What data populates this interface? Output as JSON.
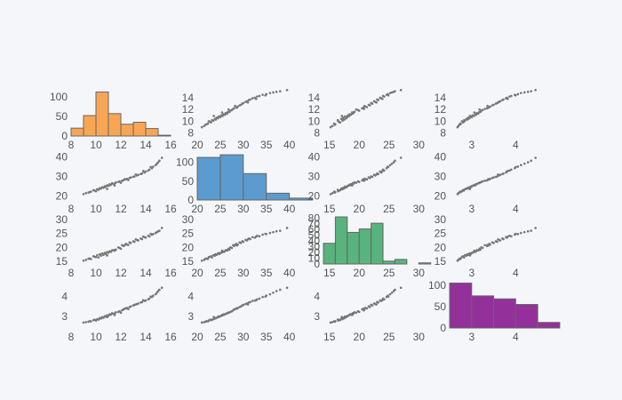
{
  "figure": {
    "background": "#f5f6fa",
    "point_color": "#777777",
    "hist_colors": [
      "#f8a654",
      "#5b9bcf",
      "#58b47c",
      "#93309a"
    ]
  },
  "chart_data": {
    "type": "scatter-matrix",
    "variables": [
      {
        "range": [
          8,
          16
        ],
        "ticks": [
          8,
          10,
          12,
          14,
          16
        ]
      },
      {
        "range": [
          20,
          42
        ],
        "ticks": [
          20,
          25,
          30,
          35,
          40
        ]
      },
      {
        "range": [
          14,
          31
        ],
        "ticks": [
          15,
          20,
          25,
          30
        ]
      },
      {
        "range": [
          2.5,
          4.8
        ],
        "ticks": [
          3,
          4
        ]
      }
    ],
    "row_axes": [
      {
        "range": [
          7.5,
          15.5
        ],
        "ticks": [
          8,
          10,
          12,
          14
        ]
      },
      {
        "range": [
          18,
          42
        ],
        "ticks": [
          20,
          30,
          40
        ]
      },
      {
        "range": [
          14,
          31
        ],
        "ticks": [
          15,
          20,
          25,
          30
        ]
      },
      {
        "range": [
          2.4,
          4.8
        ],
        "ticks": [
          3,
          4
        ]
      }
    ],
    "histograms": [
      {
        "variable": 0,
        "color": "#f8a654",
        "bin_edges": [
          8,
          9,
          10,
          11,
          12,
          13,
          14,
          15,
          16
        ],
        "counts": [
          20,
          52,
          112,
          57,
          30,
          35,
          19,
          2
        ],
        "y_range": [
          0,
          120
        ],
        "y_ticks": [
          0,
          50,
          100
        ]
      },
      {
        "variable": 1,
        "color": "#5b9bcf",
        "bin_edges": [
          20,
          25,
          30,
          35,
          40,
          45
        ],
        "counts": [
          113,
          120,
          70,
          18,
          5
        ],
        "y_range": [
          0,
          125
        ],
        "y_ticks": [
          0,
          50,
          100
        ]
      },
      {
        "variable": 2,
        "color": "#58b47c",
        "bin_edges": [
          14,
          16,
          18,
          20,
          22,
          24,
          26,
          28,
          30,
          32
        ],
        "counts": [
          36,
          82,
          55,
          61,
          71,
          5,
          8,
          0,
          2
        ],
        "y_range": [
          0,
          82
        ],
        "y_ticks": [
          0,
          10,
          20,
          30,
          40,
          50,
          60,
          70,
          80
        ]
      },
      {
        "variable": 3,
        "color": "#93309a",
        "bin_edges": [
          2.5,
          3.0,
          3.5,
          4.0,
          4.5,
          5.0
        ],
        "counts": [
          105,
          75,
          68,
          55,
          13
        ],
        "y_range": [
          0,
          110
        ],
        "y_ticks": [
          0,
          50,
          100
        ]
      }
    ],
    "scatter_points": [
      [
        9.2,
        21.5,
        15.5,
        2.7
      ],
      [
        9.5,
        22.0,
        16.0,
        2.75
      ],
      [
        9.8,
        23.0,
        16.8,
        2.8
      ],
      [
        10.1,
        23.5,
        17.2,
        2.85
      ],
      [
        10.3,
        24.0,
        17.5,
        2.9
      ],
      [
        10.5,
        24.5,
        17.8,
        2.95
      ],
      [
        10.7,
        25.0,
        18.0,
        3.0
      ],
      [
        10.9,
        25.5,
        18.3,
        3.05
      ],
      [
        11.1,
        26.0,
        18.6,
        3.1
      ],
      [
        11.3,
        26.5,
        18.9,
        3.15
      ],
      [
        10.0,
        22.5,
        16.5,
        2.78
      ],
      [
        10.4,
        23.8,
        17.0,
        2.88
      ],
      [
        10.8,
        24.8,
        17.6,
        2.98
      ],
      [
        11.2,
        25.8,
        18.4,
        3.08
      ],
      [
        11.6,
        27.0,
        19.2,
        3.2
      ],
      [
        11.9,
        27.5,
        19.8,
        3.25
      ],
      [
        12.2,
        28.0,
        20.5,
        3.35
      ],
      [
        12.5,
        28.8,
        21.0,
        3.42
      ],
      [
        12.8,
        29.5,
        21.6,
        3.5
      ],
      [
        13.1,
        30.0,
        22.0,
        3.58
      ],
      [
        13.4,
        30.8,
        22.5,
        3.65
      ],
      [
        13.7,
        31.5,
        23.0,
        3.72
      ],
      [
        14.0,
        32.5,
        23.5,
        3.8
      ],
      [
        14.3,
        33.5,
        24.0,
        3.9
      ],
      [
        14.6,
        35.0,
        24.8,
        4.05
      ],
      [
        14.9,
        36.5,
        25.5,
        4.2
      ],
      [
        15.1,
        38.0,
        26.0,
        4.35
      ],
      [
        15.3,
        39.5,
        27.0,
        4.45
      ],
      [
        9.0,
        21.0,
        15.2,
        2.68
      ],
      [
        9.6,
        22.3,
        15.8,
        2.74
      ],
      [
        10.2,
        23.2,
        16.4,
        2.83
      ],
      [
        10.6,
        24.2,
        17.3,
        2.92
      ],
      [
        11.0,
        25.2,
        18.1,
        3.02
      ],
      [
        11.4,
        26.2,
        19.0,
        3.12
      ],
      [
        11.8,
        27.2,
        20.0,
        3.22
      ],
      [
        12.1,
        27.8,
        20.8,
        3.3
      ],
      [
        12.4,
        28.5,
        21.3,
        3.4
      ],
      [
        12.7,
        29.2,
        21.8,
        3.47
      ],
      [
        13.0,
        29.8,
        22.2,
        3.55
      ],
      [
        13.3,
        30.5,
        22.7,
        3.62
      ],
      [
        13.6,
        31.2,
        23.2,
        3.7
      ],
      [
        13.9,
        32.0,
        23.7,
        3.78
      ],
      [
        14.2,
        33.0,
        24.2,
        3.86
      ],
      [
        14.5,
        34.2,
        24.6,
        3.98
      ],
      [
        14.8,
        35.8,
        25.2,
        4.12
      ],
      [
        15.0,
        37.2,
        25.8,
        4.28
      ],
      [
        10.9,
        23.6,
        17.1,
        2.96
      ],
      [
        11.5,
        25.4,
        18.8,
        3.06
      ],
      [
        12.0,
        26.8,
        19.5,
        3.18
      ],
      [
        12.6,
        28.2,
        20.9,
        3.36
      ],
      [
        13.2,
        31.0,
        22.9,
        3.6
      ],
      [
        13.8,
        32.8,
        23.9,
        3.82
      ],
      [
        14.4,
        34.8,
        24.9,
        4.0
      ],
      [
        9.4,
        21.8,
        15.9,
        2.72
      ],
      [
        9.9,
        22.8,
        16.6,
        2.82
      ],
      [
        10.35,
        23.9,
        17.4,
        2.91
      ],
      [
        10.75,
        24.6,
        17.9,
        2.99
      ],
      [
        11.15,
        25.6,
        18.5,
        3.09
      ],
      [
        11.55,
        26.6,
        19.1,
        3.17
      ],
      [
        12.3,
        28.6,
        20.7,
        3.38
      ]
    ]
  }
}
